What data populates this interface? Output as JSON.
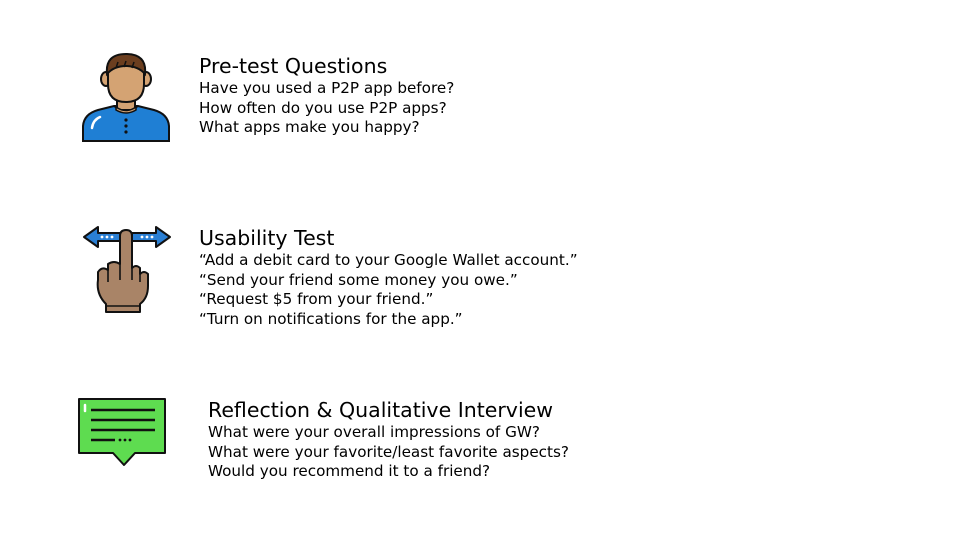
{
  "sections": {
    "pretest": {
      "icon": "person-icon",
      "heading": "Pre-test Questions",
      "lines": [
        "Have you used a P2P app before?",
        "How often do you use P2P apps?",
        "What apps make you happy?"
      ]
    },
    "usability": {
      "icon": "swipe-hand-icon",
      "heading": "Usability Test",
      "lines": [
        "“Add a debit card to your Google Wallet account.”",
        "“Send your friend some money you owe.”",
        "“Request $5 from your friend.”",
        "“Turn on notifications for the app.”"
      ]
    },
    "reflection": {
      "icon": "chat-bubble-icon",
      "heading": "Reflection & Qualitative Interview",
      "lines": [
        "What were your overall impressions of GW?",
        "What were your favorite/least favorite aspects?",
        "Would you recommend it to a friend?"
      ]
    }
  },
  "colors": {
    "skin": "#D4A373",
    "hair": "#6B3E1F",
    "shirt": "#1F7FD4",
    "hand": "#A98467",
    "arrow": "#2A7FD4",
    "bubble": "#5EDC50",
    "outline": "#111111"
  }
}
